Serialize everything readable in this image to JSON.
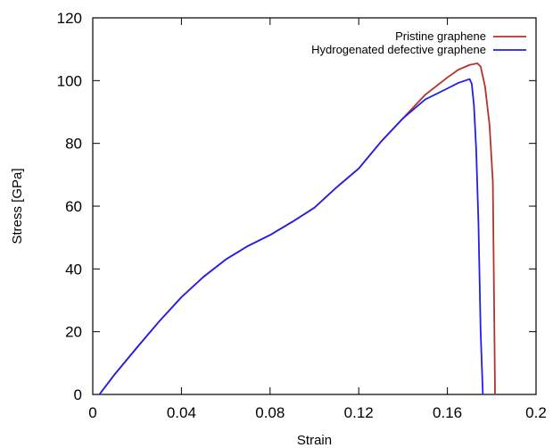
{
  "chart_data": {
    "type": "line",
    "title": "",
    "xlabel": "Strain",
    "ylabel": "Stress [GPa]",
    "xlim": [
      0,
      0.2
    ],
    "ylim": [
      0,
      120
    ],
    "xticks": [
      "0",
      "0.04",
      "0.08",
      "0.12",
      "0.16",
      "0.2"
    ],
    "xtick_values": [
      0,
      0.04,
      0.08,
      0.12,
      0.16,
      0.2
    ],
    "yticks": [
      "0",
      "20",
      "40",
      "60",
      "80",
      "100",
      "120"
    ],
    "ytick_values": [
      0,
      20,
      40,
      60,
      80,
      100,
      120
    ],
    "grid": false,
    "legend_position": "top-right",
    "series": [
      {
        "name": "Pristine graphene",
        "color": "#b5312a",
        "x": [
          0.003,
          0.01,
          0.02,
          0.03,
          0.04,
          0.05,
          0.06,
          0.07,
          0.08,
          0.09,
          0.1,
          0.11,
          0.12,
          0.13,
          0.14,
          0.15,
          0.16,
          0.165,
          0.17,
          0.1735,
          0.175,
          0.177,
          0.179,
          0.1805,
          0.1815
        ],
        "y": [
          0,
          6.5,
          15,
          23.3,
          31,
          37.5,
          43,
          47.3,
          50.8,
          55,
          59.5,
          66,
          72,
          80.5,
          88,
          95.5,
          101,
          103.5,
          105,
          105.5,
          104.5,
          98,
          86,
          68,
          0
        ]
      },
      {
        "name": "Hydrogenated defective graphene",
        "color": "#1f1ff0",
        "x": [
          0.003,
          0.01,
          0.02,
          0.03,
          0.04,
          0.05,
          0.06,
          0.07,
          0.08,
          0.09,
          0.1,
          0.11,
          0.12,
          0.13,
          0.14,
          0.15,
          0.16,
          0.165,
          0.168,
          0.17,
          0.171,
          0.172,
          0.173,
          0.174,
          0.175,
          0.176
        ],
        "y": [
          0,
          6.5,
          15,
          23.3,
          31,
          37.5,
          43,
          47.3,
          50.8,
          55,
          59.5,
          66,
          72,
          80.5,
          88,
          94,
          97.5,
          99.3,
          100,
          100.5,
          99,
          92,
          78,
          55,
          20,
          0
        ]
      }
    ]
  }
}
